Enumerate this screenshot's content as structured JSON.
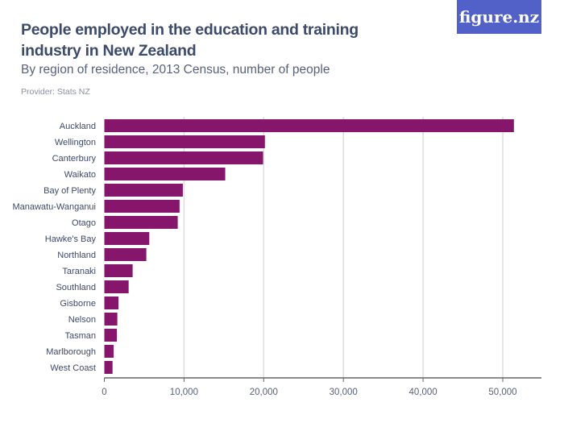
{
  "header": {
    "title": "People employed in the education and training industry in New Zealand",
    "subtitle": "By region of residence, 2013 Census, number of people",
    "provider": "Provider: Stats NZ",
    "logo": "figure.nz"
  },
  "colors": {
    "bar": "#86166b",
    "logo_bg": "#5261c7",
    "grid": "#dddddd"
  },
  "chart_data": {
    "type": "bar",
    "orientation": "horizontal",
    "categories": [
      "Auckland",
      "Wellington",
      "Canterbury",
      "Waikato",
      "Bay of Plenty",
      "Manawatu-Wanganui",
      "Otago",
      "Hawke's Bay",
      "Northland",
      "Taranaki",
      "Southland",
      "Gisborne",
      "Nelson",
      "Tasman",
      "Marlborough",
      "West Coast"
    ],
    "values": [
      51400,
      20150,
      19920,
      15170,
      9850,
      9440,
      9210,
      5640,
      5270,
      3550,
      3050,
      1770,
      1630,
      1570,
      1160,
      1030
    ],
    "xlim": [
      0,
      55000
    ],
    "ticks": [
      0,
      10000,
      20000,
      30000,
      40000,
      50000
    ],
    "tick_labels": [
      "0",
      "10,000",
      "20,000",
      "30,000",
      "40,000",
      "50,000"
    ],
    "grid": true
  }
}
